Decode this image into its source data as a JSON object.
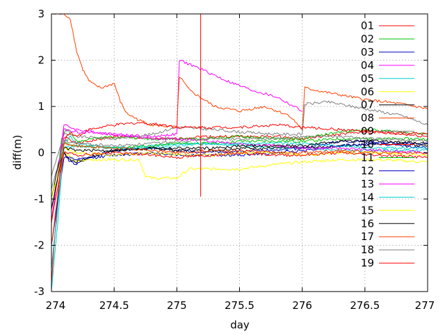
{
  "chart_data": {
    "type": "line",
    "title": "",
    "xlabel": "day",
    "ylabel": "diff(m)",
    "xlim": [
      274,
      277
    ],
    "ylim": [
      -3,
      3
    ],
    "grid": true,
    "legend_position": "top-right",
    "x_ticks": [
      {
        "value": 274,
        "label": "274"
      },
      {
        "value": 274.5,
        "label": "274.5"
      },
      {
        "value": 275,
        "label": "275"
      },
      {
        "value": 275.5,
        "label": "275.5"
      },
      {
        "value": 276,
        "label": "276"
      },
      {
        "value": 276.5,
        "label": "276.5"
      },
      {
        "value": 277,
        "label": "277"
      }
    ],
    "y_ticks": [
      {
        "value": -3,
        "label": "-3"
      },
      {
        "value": -2,
        "label": "-2"
      },
      {
        "value": -1,
        "label": "-1"
      },
      {
        "value": 0,
        "label": "0"
      },
      {
        "value": 1,
        "label": "1"
      },
      {
        "value": 2,
        "label": "2"
      },
      {
        "value": 3,
        "label": "3"
      }
    ],
    "series": [
      {
        "name": "01",
        "color": "#ff0000",
        "x": [
          274.0,
          274.05,
          274.08,
          274.12,
          274.2,
          274.3,
          274.5,
          274.8,
          275.0,
          275.2,
          275.5,
          275.8,
          276.0,
          276.3,
          276.5,
          276.8,
          277.0
        ],
        "y": [
          -2.5,
          -1.2,
          0.1,
          0.35,
          0.2,
          0.25,
          0.35,
          0.3,
          0.3,
          0.35,
          0.35,
          0.35,
          0.3,
          0.4,
          0.45,
          0.4,
          0.35
        ]
      },
      {
        "name": "02",
        "color": "#00c000",
        "x": [
          274.0,
          274.05,
          274.08,
          274.12,
          274.2,
          274.3,
          274.5,
          274.8,
          275.0,
          275.2,
          275.5,
          275.8,
          276.0,
          276.3,
          276.5,
          276.8,
          277.0
        ],
        "y": [
          -1.5,
          -0.5,
          0.3,
          0.5,
          0.25,
          0.3,
          0.35,
          0.3,
          0.3,
          0.3,
          0.35,
          0.3,
          0.3,
          0.45,
          0.5,
          0.45,
          0.4
        ]
      },
      {
        "name": "03",
        "color": "#0000c0",
        "x": [
          274.0,
          274.05,
          274.1,
          274.15,
          274.2,
          274.3,
          274.5,
          274.8,
          275.0,
          275.2,
          275.5,
          275.8,
          276.0,
          276.3,
          276.5,
          276.8,
          277.0
        ],
        "y": [
          -1.0,
          -0.5,
          0.0,
          -0.2,
          -0.25,
          -0.1,
          0.05,
          0.1,
          0.05,
          0.0,
          0.05,
          0.05,
          0.1,
          0.25,
          0.25,
          0.2,
          0.2
        ]
      },
      {
        "name": "04",
        "color": "#ff00ff",
        "x": [
          274.0,
          274.1,
          274.2,
          274.5,
          274.8,
          275.0,
          275.02,
          275.2,
          275.4,
          275.6,
          275.8,
          276.0
        ],
        "y": [
          -1.5,
          0.6,
          0.5,
          0.4,
          0.35,
          0.4,
          2.0,
          1.8,
          1.55,
          1.35,
          1.2,
          0.9
        ]
      },
      {
        "name": "05",
        "color": "#00d0d0",
        "x": [
          274.0,
          274.05,
          274.1,
          274.15,
          274.2,
          274.3,
          274.5,
          274.8,
          275.0,
          275.3,
          275.5,
          275.8,
          276.0,
          276.3,
          276.6,
          277.0
        ],
        "y": [
          -3.0,
          -1.5,
          0.2,
          0.35,
          0.2,
          0.15,
          0.1,
          0.15,
          0.2,
          0.2,
          0.15,
          0.1,
          0.1,
          0.05,
          0.05,
          0.05
        ]
      },
      {
        "name": "06",
        "color": "#ffff00",
        "x": [
          274.0,
          274.1,
          274.2,
          274.3,
          274.5,
          274.7,
          274.75,
          274.8,
          275.0,
          275.1,
          275.3,
          275.5,
          275.8,
          276.0,
          276.3,
          276.6,
          277.0
        ],
        "y": [
          -1.0,
          0.0,
          -0.2,
          -0.15,
          -0.15,
          -0.15,
          -0.5,
          -0.55,
          -0.55,
          -0.35,
          -0.35,
          -0.35,
          -0.25,
          -0.2,
          -0.15,
          -0.15,
          -0.2
        ]
      },
      {
        "name": "07",
        "color": "#000000",
        "x": [
          274.0,
          274.05,
          274.1,
          274.15,
          274.2,
          274.3,
          274.5,
          274.8,
          275.0,
          275.3,
          275.5,
          275.8,
          276.0,
          276.3,
          276.6,
          277.0
        ],
        "y": [
          -1.0,
          -0.3,
          0.0,
          -0.15,
          -0.2,
          -0.1,
          0.05,
          0.1,
          0.05,
          0.05,
          0.1,
          0.1,
          0.1,
          0.15,
          0.2,
          0.15
        ]
      },
      {
        "name": "08",
        "color": "#ff4000",
        "x": [
          274.0,
          274.05,
          274.1,
          274.15,
          274.2,
          274.25,
          274.3,
          274.35,
          274.4,
          274.5,
          274.55,
          274.6,
          274.7,
          274.8,
          275.0,
          275.02,
          275.1,
          275.3,
          275.5,
          275.7,
          275.8,
          275.9,
          276.0,
          276.02,
          276.2,
          276.5,
          276.8,
          277.0
        ],
        "y": [
          3.0,
          3.0,
          3.0,
          2.9,
          2.2,
          1.8,
          1.55,
          1.45,
          1.4,
          1.5,
          1.1,
          0.85,
          0.7,
          0.6,
          0.55,
          1.65,
          1.35,
          1.0,
          0.9,
          1.0,
          0.9,
          0.8,
          0.5,
          1.4,
          1.3,
          1.15,
          1.05,
          0.95
        ]
      },
      {
        "name": "09",
        "color": "#808080",
        "x": [
          274.0,
          274.1,
          274.2,
          274.5,
          274.8,
          275.0,
          275.3,
          275.5,
          275.8,
          276.0,
          276.02,
          276.2,
          276.5,
          276.8,
          277.0
        ],
        "y": [
          -0.5,
          0.4,
          0.35,
          0.3,
          0.4,
          0.55,
          0.5,
          0.45,
          0.4,
          0.4,
          1.05,
          1.1,
          0.95,
          0.8,
          0.6
        ]
      },
      {
        "name": "10",
        "color": "#ff0000",
        "x": [
          274.0,
          274.05,
          274.1,
          274.15,
          274.2,
          274.3,
          274.5,
          274.7,
          274.9,
          275.0,
          275.3,
          275.5,
          275.8,
          276.0,
          276.3,
          276.6,
          277.0
        ],
        "y": [
          -2.8,
          -1.0,
          0.3,
          0.45,
          0.35,
          0.5,
          0.6,
          0.65,
          0.6,
          0.55,
          0.55,
          0.55,
          0.6,
          0.55,
          0.5,
          0.45,
          0.4
        ]
      },
      {
        "name": "11",
        "color": "#00c000",
        "x": [
          274.0,
          274.1,
          274.2,
          274.5,
          274.8,
          275.0,
          275.3,
          275.5,
          275.8,
          276.0,
          276.3,
          276.6,
          277.0
        ],
        "y": [
          -1.2,
          0.2,
          0.15,
          0.1,
          0.15,
          0.2,
          0.2,
          0.25,
          0.25,
          0.25,
          0.3,
          0.3,
          0.3
        ]
      },
      {
        "name": "12",
        "color": "#0000c0",
        "x": [
          274.0,
          274.1,
          274.2,
          274.5,
          274.8,
          275.0,
          275.3,
          275.5,
          275.8,
          276.0,
          276.3,
          276.6,
          277.0
        ],
        "y": [
          -2.0,
          -0.1,
          -0.15,
          -0.05,
          0.0,
          -0.05,
          -0.05,
          -0.05,
          0.0,
          0.05,
          0.15,
          0.2,
          0.1
        ]
      },
      {
        "name": "13",
        "color": "#ff00ff",
        "x": [
          274.0,
          274.1,
          274.2,
          274.5,
          274.8,
          275.0,
          275.3,
          275.5,
          275.8,
          276.0,
          276.3,
          276.6,
          277.0
        ],
        "y": [
          -1.5,
          0.5,
          0.45,
          0.4,
          0.3,
          0.3,
          0.25,
          0.2,
          0.15,
          0.1,
          0.1,
          0.05,
          0.0
        ]
      },
      {
        "name": "14",
        "color": "#00d0d0",
        "x": [
          274.0,
          274.1,
          274.2,
          274.5,
          274.8,
          275.0,
          275.3,
          275.5,
          275.8,
          276.0,
          276.3,
          276.6,
          277.0
        ],
        "y": [
          -2.5,
          0.1,
          0.15,
          0.1,
          0.1,
          0.15,
          0.2,
          0.2,
          0.2,
          0.2,
          0.15,
          0.1,
          0.1
        ]
      },
      {
        "name": "15",
        "color": "#ffff00",
        "x": [
          274.0,
          274.1,
          274.2,
          274.5,
          274.8,
          275.0,
          275.3,
          275.5,
          275.8,
          276.0,
          276.3,
          276.6,
          277.0
        ],
        "y": [
          -1.0,
          0.1,
          0.0,
          -0.05,
          0.0,
          -0.05,
          -0.05,
          0.0,
          0.0,
          -0.05,
          0.0,
          0.0,
          -0.05
        ]
      },
      {
        "name": "16",
        "color": "#000000",
        "x": [
          274.0,
          274.1,
          274.2,
          274.5,
          274.8,
          275.0,
          275.3,
          275.5,
          275.8,
          276.0,
          276.3,
          276.6,
          277.0
        ],
        "y": [
          -1.2,
          0.1,
          0.05,
          0.05,
          0.1,
          0.1,
          0.1,
          0.15,
          0.15,
          0.15,
          0.25,
          0.25,
          0.2
        ]
      },
      {
        "name": "17",
        "color": "#ff4000",
        "x": [
          274.0,
          274.1,
          274.2,
          274.5,
          274.8,
          275.0,
          275.3,
          275.5,
          275.8,
          276.0,
          276.3,
          276.6,
          277.0
        ],
        "y": [
          -2.0,
          0.2,
          0.15,
          0.1,
          0.05,
          0.0,
          0.05,
          0.05,
          0.0,
          0.0,
          0.05,
          0.0,
          0.0
        ]
      },
      {
        "name": "18",
        "color": "#808080",
        "x": [
          274.0,
          274.1,
          274.2,
          274.5,
          274.8,
          275.0,
          275.3,
          275.5,
          275.8,
          276.0,
          276.3,
          276.6,
          277.0
        ],
        "y": [
          -0.8,
          0.25,
          0.2,
          0.15,
          0.2,
          0.25,
          0.3,
          0.3,
          0.3,
          0.35,
          0.35,
          0.3,
          0.25
        ]
      },
      {
        "name": "19",
        "color": "#ff0000",
        "x": [
          274.0,
          274.1,
          274.2,
          274.5,
          274.8,
          275.0,
          275.3,
          275.5,
          275.8,
          276.0,
          276.3,
          276.6,
          277.0
        ],
        "y": [
          -1.5,
          0.0,
          -0.05,
          0.0,
          -0.05,
          -0.1,
          -0.05,
          0.0,
          -0.05,
          -0.05,
          0.0,
          -0.05,
          -0.1
        ]
      }
    ],
    "annotations": [
      {
        "type": "vertical-spike",
        "color": "#ff0000",
        "x": 275.19,
        "y_from": -0.95,
        "y_to": 3.0
      }
    ]
  }
}
